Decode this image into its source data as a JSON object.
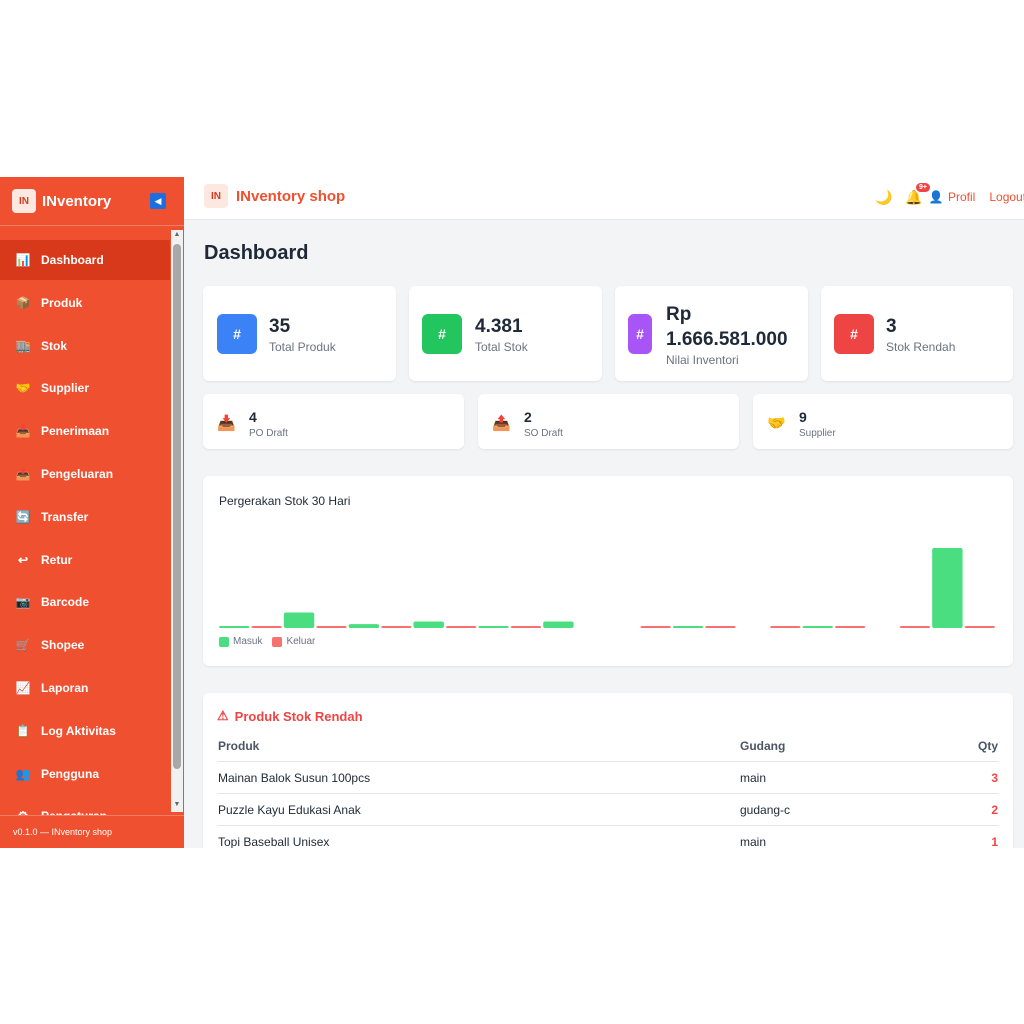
{
  "sidebar": {
    "brand": "INventory",
    "logo_text": "IN",
    "items": [
      {
        "label": "Dashboard",
        "icon": "📊",
        "active": true
      },
      {
        "label": "Produk",
        "icon": "📦"
      },
      {
        "label": "Stok",
        "icon": "🏬"
      },
      {
        "label": "Supplier",
        "icon": "🤝"
      },
      {
        "label": "Penerimaan",
        "icon": "📥"
      },
      {
        "label": "Pengeluaran",
        "icon": "📤"
      },
      {
        "label": "Transfer",
        "icon": "🔄"
      },
      {
        "label": "Retur",
        "icon": "↩"
      },
      {
        "label": "Barcode",
        "icon": "📷"
      },
      {
        "label": "Shopee",
        "icon": "🛒"
      },
      {
        "label": "Laporan",
        "icon": "📈"
      },
      {
        "label": "Log Aktivitas",
        "icon": "📋"
      },
      {
        "label": "Pengguna",
        "icon": "👥"
      },
      {
        "label": "Pengaturan",
        "icon": "⚙"
      }
    ],
    "footer": "v0.1.0 — INventory shop"
  },
  "topbar": {
    "brand": "INventory shop",
    "notif_badge": "9+",
    "profile": "Profil",
    "logout": "Logout"
  },
  "main": {
    "title": "Dashboard",
    "stats": [
      {
        "icon": "#",
        "value": "35",
        "label": "Total Produk",
        "color": "#3b82f6"
      },
      {
        "icon": "#",
        "value": "4.381",
        "label": "Total Stok",
        "color": "#22c55e"
      },
      {
        "icon": "#",
        "value": "Rp 1.666.581.000",
        "label": "Nilai Inventori",
        "color": "#a855f7"
      },
      {
        "icon": "#",
        "value": "3",
        "label": "Stok Rendah",
        "color": "#ef4444"
      }
    ],
    "small_stats": [
      {
        "icon": "📥",
        "value": "4",
        "label": "PO Draft"
      },
      {
        "icon": "📤",
        "value": "2",
        "label": "SO Draft"
      },
      {
        "icon": "🤝",
        "value": "9",
        "label": "Supplier"
      }
    ],
    "chart_title": "Pergerakan Stok 30 Hari",
    "legend": {
      "in": "Masuk",
      "out": "Keluar"
    },
    "low_stock": {
      "title": "Produk Stok Rendah",
      "columns": [
        "Produk",
        "Gudang",
        "Qty"
      ],
      "rows": [
        {
          "product": "Mainan Balok Susun 100pcs",
          "warehouse": "main",
          "qty": "3"
        },
        {
          "product": "Puzzle Kayu Edukasi Anak",
          "warehouse": "gudang-c",
          "qty": "2"
        },
        {
          "product": "Topi Baseball Unisex",
          "warehouse": "main",
          "qty": "1"
        }
      ]
    }
  },
  "chart_data": {
    "type": "bar",
    "series": [
      {
        "name": "Masuk",
        "color": "#4ade80",
        "values": [
          1,
          12,
          3,
          5,
          1,
          5,
          0,
          1,
          0,
          1,
          0,
          62
        ]
      },
      {
        "name": "Keluar",
        "color": "#f87171",
        "values": [
          1,
          1,
          1,
          1,
          1,
          0,
          1,
          1,
          1,
          1,
          1,
          1
        ]
      }
    ]
  }
}
